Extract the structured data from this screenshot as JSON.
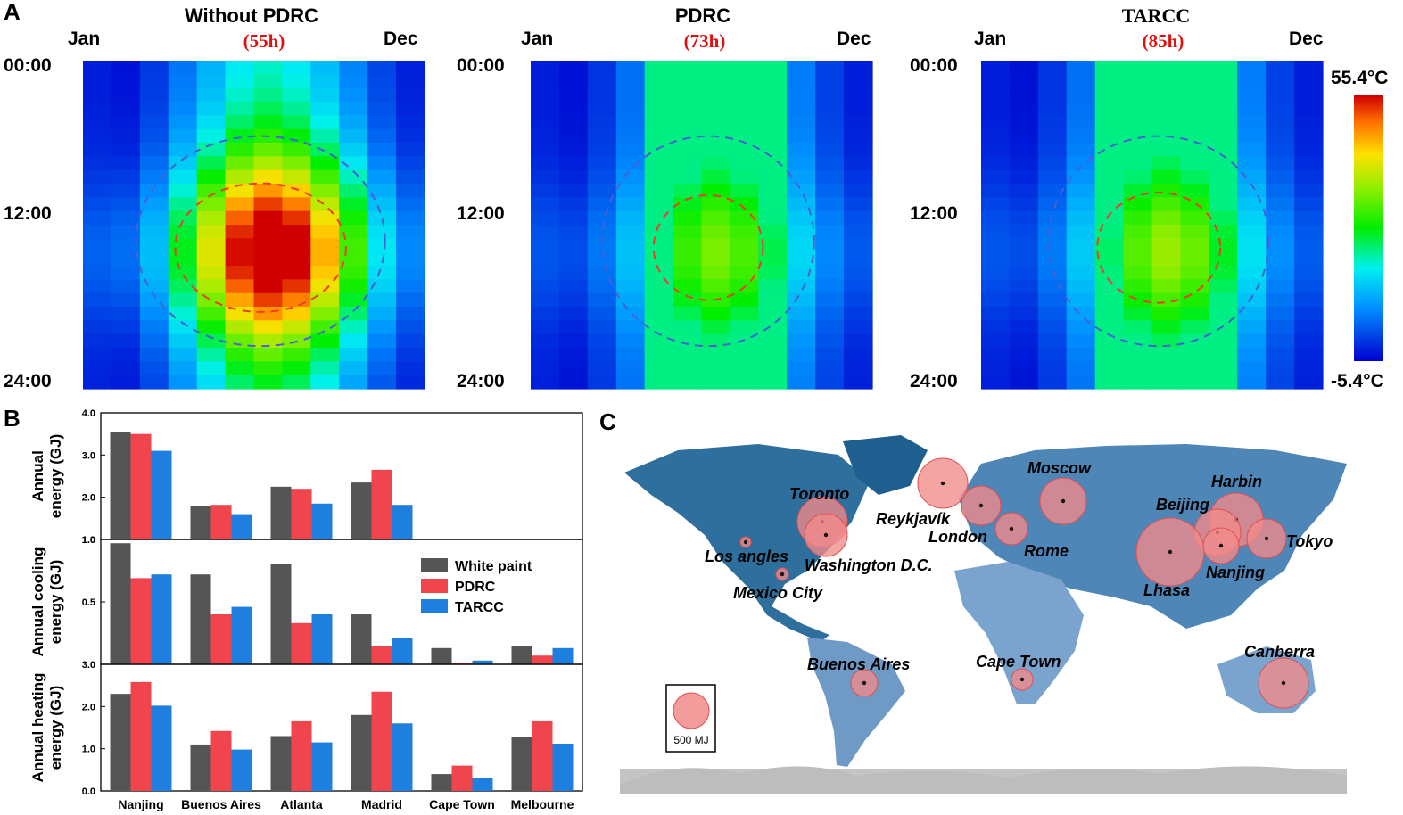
{
  "panels": {
    "a": "A",
    "b": "B",
    "c": "C"
  },
  "heatmaps": {
    "month_start": "Jan",
    "month_end": "Dec",
    "hours": [
      "00:00",
      "12:00",
      "24:00"
    ],
    "colorbar": {
      "max": "55.4°C",
      "min": "-5.4°C",
      "vmin": -5.4,
      "vmax": 55.4
    },
    "maps": [
      {
        "title": "Without PDRC",
        "hours_label": "(55h)",
        "peak": 55.4,
        "spread": 0.95
      },
      {
        "title": "PDRC",
        "hours_label": "(73h)",
        "peak": 27.5,
        "spread": 0.5
      },
      {
        "title": "TARCC",
        "hours_label": "(85h)",
        "peak": 29.5,
        "spread": 0.6
      }
    ]
  },
  "chart_data": {
    "type": "bar",
    "categories": [
      "Nanjing",
      "Buenos Aires",
      "Atlanta",
      "Madrid",
      "Cape Town",
      "Melbourne"
    ],
    "legend": [
      "White paint",
      "PDRC",
      "TARCC"
    ],
    "colors": [
      "#555555",
      "#f0454c",
      "#1e7fdf"
    ],
    "subplots": [
      {
        "ylabel": [
          "Annual",
          "energy (GJ)"
        ],
        "ylim": [
          1.0,
          4.0
        ],
        "yticks": [
          "1.0",
          "2.0",
          "3.0",
          "4.0"
        ],
        "tickvals": [
          1.0,
          2.0,
          3.0,
          4.0
        ],
        "series": [
          {
            "name": "White paint",
            "values": [
              3.55,
              1.8,
              2.25,
              2.35
            ]
          },
          {
            "name": "PDRC",
            "values": [
              3.5,
              1.82,
              2.2,
              2.65
            ]
          },
          {
            "name": "TARCC",
            "values": [
              3.1,
              1.6,
              1.85,
              1.82
            ]
          }
        ]
      },
      {
        "ylabel": [
          "Annual cooling",
          "energy (GJ)"
        ],
        "ylim": [
          0.0,
          1.0
        ],
        "yticks": [
          "0.5",
          "1.0"
        ],
        "tickvals": [
          0.5,
          1.0
        ],
        "series": [
          {
            "name": "White paint",
            "values": [
              0.97,
              0.72,
              0.8,
              0.4,
              0.13,
              0.15
            ]
          },
          {
            "name": "PDRC",
            "values": [
              0.69,
              0.4,
              0.33,
              0.15,
              0.01,
              0.07
            ]
          },
          {
            "name": "TARCC",
            "values": [
              0.72,
              0.46,
              0.4,
              0.21,
              0.03,
              0.13
            ]
          }
        ]
      },
      {
        "ylabel": [
          "Annual heating",
          "energy (GJ)"
        ],
        "ylim": [
          0.0,
          3.0
        ],
        "yticks": [
          "0.0",
          "1.0",
          "2.0",
          "3.0"
        ],
        "tickvals": [
          0.0,
          1.0,
          2.0,
          3.0
        ],
        "series": [
          {
            "name": "White paint",
            "values": [
              2.3,
              1.1,
              1.3,
              1.8,
              0.4,
              1.28
            ]
          },
          {
            "name": "PDRC",
            "values": [
              2.58,
              1.42,
              1.65,
              2.35,
              0.6,
              1.65
            ]
          },
          {
            "name": "TARCC",
            "values": [
              2.02,
              0.98,
              1.15,
              1.6,
              0.31,
              1.12
            ]
          }
        ]
      }
    ]
  },
  "map": {
    "scale_label": "500 MJ",
    "cities": [
      {
        "name": "Toronto",
        "r": 28
      },
      {
        "name": "Reykjavík",
        "r": 28
      },
      {
        "name": "Moscow",
        "r": 26
      },
      {
        "name": "Harbin",
        "r": 30
      },
      {
        "name": "Beijing",
        "r": 26
      },
      {
        "name": "London",
        "r": 22
      },
      {
        "name": "Tokyo",
        "r": 22
      },
      {
        "name": "Rome",
        "r": 18
      },
      {
        "name": "Los angles",
        "r": 6
      },
      {
        "name": "Washington D.C.",
        "r": 24
      },
      {
        "name": "Lhasa",
        "r": 38
      },
      {
        "name": "Nanjing",
        "r": 20
      },
      {
        "name": "Mexico City",
        "r": 7
      },
      {
        "name": "Buenos Aires",
        "r": 15
      },
      {
        "name": "Cape Town",
        "r": 12
      },
      {
        "name": "Canberra",
        "r": 28
      }
    ]
  }
}
